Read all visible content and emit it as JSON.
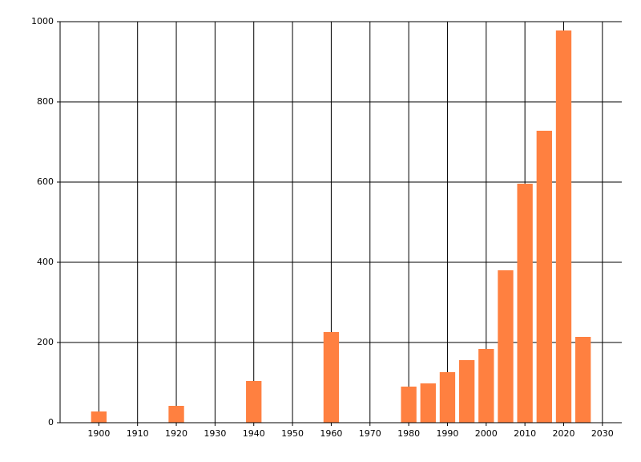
{
  "chart_data": {
    "type": "bar",
    "x": [
      1900,
      1920,
      1940,
      1960,
      1980,
      1985,
      1990,
      1995,
      2000,
      2005,
      2010,
      2015,
      2020,
      2025
    ],
    "values": [
      28,
      42,
      104,
      226,
      90,
      98,
      126,
      156,
      184,
      380,
      596,
      728,
      978,
      214
    ],
    "color": "#ff8040",
    "xlim": [
      1890,
      2035
    ],
    "xticks": [
      1900,
      1910,
      1920,
      1930,
      1940,
      1950,
      1960,
      1970,
      1980,
      1990,
      2000,
      2010,
      2020,
      2030
    ],
    "ylim": [
      0,
      1000
    ],
    "yticks": [
      0,
      200,
      400,
      600,
      800,
      1000
    ],
    "grid": true
  }
}
